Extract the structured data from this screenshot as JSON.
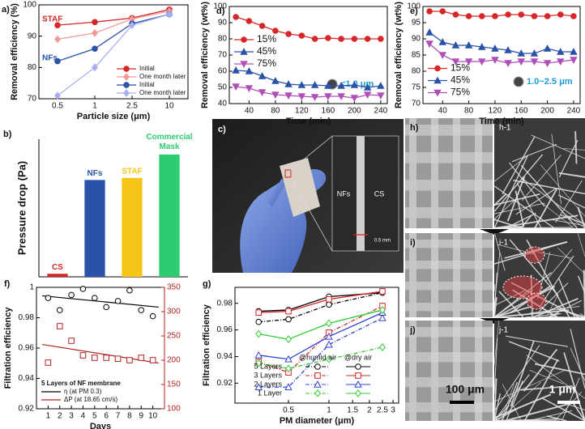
{
  "chart_data": [
    {
      "type": "line",
      "label": "a)",
      "xlabel": "Particle size (μm)",
      "ylabel": "Removal efficiency (%)",
      "categories": [
        "0.5",
        "1",
        "2.5",
        "10"
      ],
      "ylim": [
        70,
        100
      ],
      "yticks": [
        70,
        80,
        90,
        100
      ],
      "legend": "lower right",
      "annotations": [
        {
          "text": "STAF",
          "color": "#d62728"
        },
        {
          "text": "NFs",
          "color": "#2a52a8"
        }
      ],
      "series": [
        {
          "name": "Initial",
          "color": "#d62728",
          "marker": "circle",
          "values": [
            93.5,
            94.5,
            95.8,
            98.5
          ]
        },
        {
          "name": "One month later",
          "color": "#f29a9a",
          "marker": "diamond",
          "values": [
            89,
            91,
            95.5,
            98
          ]
        },
        {
          "name": "Initial",
          "color": "#2a52a8",
          "marker": "circle",
          "values": [
            82,
            86,
            94,
            97
          ]
        },
        {
          "name": "One month later",
          "color": "#a9aef0",
          "marker": "diamond",
          "values": [
            71,
            80,
            93.5,
            97
          ]
        }
      ]
    },
    {
      "type": "bar",
      "label": "b)",
      "ylabel": "Pressure drop (Pa)",
      "categories": [
        "CS",
        "NFs",
        "STAF",
        "Commercial Mask"
      ],
      "values": [
        3,
        95,
        97,
        120
      ],
      "colors": [
        "#d62728",
        "#2a52a8",
        "#f5c518",
        "#2ecc71"
      ],
      "ylim": [
        0,
        135
      ]
    },
    {
      "type": "line",
      "label": "d)",
      "xlabel": "Time (min)",
      "ylabel": "Removal efficiency (wt%)",
      "x": [
        20,
        40,
        60,
        80,
        100,
        120,
        140,
        160,
        180,
        200,
        220,
        240
      ],
      "xlim": [
        10,
        250
      ],
      "xticks": [
        40,
        80,
        120,
        160,
        200,
        240
      ],
      "ylim": [
        40,
        100
      ],
      "yticks": [
        40,
        50,
        60,
        70,
        80,
        90,
        100
      ],
      "legend": "center left",
      "annotations": [
        {
          "text": "<1.0 μm",
          "color": "#1a9bd7"
        }
      ],
      "series": [
        {
          "name": "15%",
          "color": "#d62728",
          "marker": "circle",
          "values": [
            93.5,
            91,
            88,
            85,
            83,
            82,
            80,
            80.5,
            80,
            80,
            80,
            80
          ]
        },
        {
          "name": "45%",
          "color": "#2a52a8",
          "marker": "triangle",
          "values": [
            60.5,
            60,
            57,
            54,
            52,
            51.5,
            51.5,
            51,
            51,
            51.5,
            50,
            51
          ]
        },
        {
          "name": "75%",
          "color": "#b04fb8",
          "marker": "triangle-down",
          "values": [
            50.5,
            49.5,
            47,
            45.5,
            45,
            44.5,
            44,
            44.5,
            44.5,
            43.5,
            45.5,
            45
          ]
        }
      ]
    },
    {
      "type": "line",
      "label": "e)",
      "xlabel": "Time (min)",
      "ylabel": "Removal efficiency (wt%)",
      "x": [
        20,
        40,
        60,
        80,
        100,
        120,
        140,
        160,
        180,
        200,
        220,
        240
      ],
      "xlim": [
        10,
        250
      ],
      "xticks": [
        40,
        80,
        120,
        160,
        200,
        240
      ],
      "ylim": [
        70,
        100
      ],
      "yticks": [
        70,
        75,
        80,
        85,
        90,
        95,
        100
      ],
      "legend": "lower left",
      "annotations": [
        {
          "text": "1.0~2.5 μm",
          "color": "#1a9bd7"
        }
      ],
      "series": [
        {
          "name": "15%",
          "color": "#d62728",
          "marker": "circle",
          "values": [
            98.5,
            98.5,
            97.5,
            97,
            97,
            97,
            97.5,
            97.5,
            97,
            97,
            97.5,
            97
          ]
        },
        {
          "name": "45%",
          "color": "#2a52a8",
          "marker": "triangle",
          "values": [
            92,
            89,
            88,
            88,
            87.5,
            87,
            86.5,
            85.5,
            85.5,
            87,
            86,
            86
          ]
        },
        {
          "name": "75%",
          "color": "#b04fb8",
          "marker": "triangle-down",
          "values": [
            88.5,
            85,
            83,
            83,
            83,
            83.5,
            82.5,
            83,
            83,
            82.5,
            83,
            83.5
          ]
        }
      ]
    },
    {
      "type": "scatter",
      "label": "f)",
      "xlabel": "Days",
      "ylabel": "Filtration efficiency",
      "x": [
        1,
        2,
        3,
        4,
        5,
        6,
        7,
        8,
        9,
        10
      ],
      "xlim": [
        0,
        11
      ],
      "xticks": [
        1,
        2,
        3,
        4,
        5,
        6,
        7,
        8,
        9,
        10
      ],
      "ylim": [
        0.92,
        1.0
      ],
      "yticks": [
        0.92,
        0.94,
        0.96,
        0.98,
        1
      ],
      "y2lim": [
        100,
        350
      ],
      "y2ticks": [
        100,
        150,
        200,
        250,
        300,
        350
      ],
      "trendline": true,
      "legend": "lower left",
      "legend_title": "5 Layers of NF membrane",
      "series": [
        {
          "name": "η (at PM 0.3)",
          "color": "#000000",
          "marker": "circle",
          "values": [
            0.993,
            0.985,
            0.995,
            0.999,
            0.993,
            0.987,
            0.991,
            0.998,
            0.985,
            0.981
          ]
        },
        {
          "name": "ΔP (at 18.65 cm/s)",
          "color": "#b22222",
          "marker": "square",
          "axis": "y2",
          "values": [
            195,
            270,
            240,
            210,
            205,
            205,
            203,
            200,
            205,
            200
          ]
        }
      ]
    },
    {
      "type": "line",
      "label": "g)",
      "xlabel": "PM diameter (μm)",
      "ylabel": "Filtration efficiency",
      "x": [
        0.3,
        0.5,
        1,
        2.5
      ],
      "xlog": true,
      "xlim": [
        0.2,
        3.3
      ],
      "xticks": [
        0.5,
        1,
        1.5,
        2,
        2.5,
        3
      ],
      "ylim": [
        0.905,
        0.992
      ],
      "yticks": [
        0.92,
        0.94,
        0.96,
        0.98
      ],
      "legend": "lower right",
      "legend_columns": [
        "@humid air",
        "@dry air"
      ],
      "legend_rows": [
        "5 Layers",
        "3 Layers",
        "2 Layers",
        "1 Layer"
      ],
      "series": [
        {
          "color": "#000000",
          "marker": "circle",
          "dash": "dashdot",
          "values": [
            0.966,
            0.968,
            0.979,
            0.988
          ]
        },
        {
          "color": "#d62728",
          "marker": "square",
          "dash": "dashdot",
          "values": [
            0.936,
            0.928,
            0.958,
            0.978
          ]
        },
        {
          "color": "#3344cc",
          "marker": "triangle",
          "dash": "dashdot",
          "values": [
            0.917,
            0.917,
            0.949,
            0.969
          ]
        },
        {
          "color": "#33cc33",
          "marker": "diamond",
          "dash": "dashdot",
          "values": [
            0.935,
            0.931,
            0.938,
            0.947
          ]
        },
        {
          "color": "#000000",
          "marker": "circle",
          "values": [
            0.974,
            0.975,
            0.985,
            0.988
          ]
        },
        {
          "color": "#d62728",
          "marker": "square",
          "values": [
            0.973,
            0.974,
            0.983,
            0.989
          ]
        },
        {
          "color": "#3344cc",
          "marker": "triangle",
          "values": [
            0.941,
            0.938,
            0.955,
            0.973
          ]
        },
        {
          "color": "#33cc33",
          "marker": "diamond",
          "values": [
            0.957,
            0.953,
            0.965,
            0.975
          ]
        }
      ]
    }
  ],
  "photo": {
    "label": "c)",
    "left": "NFs",
    "right": "CS",
    "scale": "0.5 mm"
  },
  "sem": {
    "panels": [
      {
        "label": "h)",
        "inset": "h-1"
      },
      {
        "label": "i)",
        "inset": "i-1"
      },
      {
        "label": "j)",
        "inset": "j-1"
      }
    ],
    "scale_left": "100 μm",
    "scale_right": "1 μm"
  }
}
